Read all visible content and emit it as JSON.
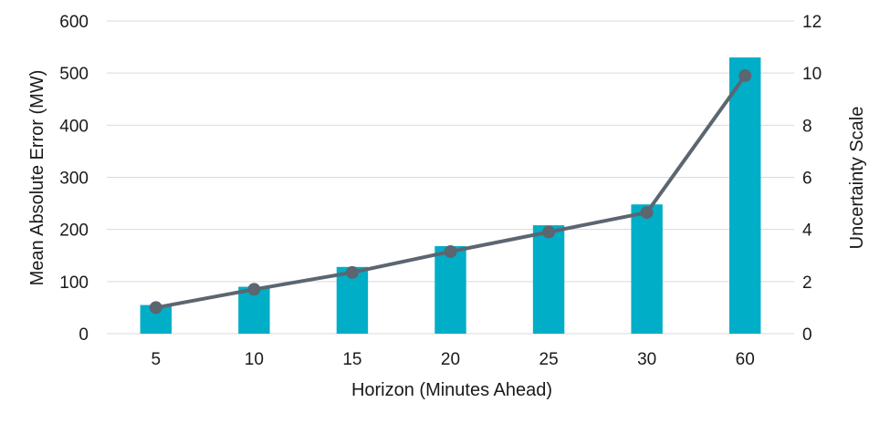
{
  "chart_data": {
    "type": "bar",
    "title": "",
    "categories": [
      "5",
      "10",
      "15",
      "20",
      "25",
      "30",
      "60"
    ],
    "xlabel": "Horizon (Minutes Ahead)",
    "ylabel": "Mean Absolute Error (MW)",
    "y2label": "Uncertainty Scale",
    "ylim": [
      0,
      600
    ],
    "y2lim": [
      0,
      12
    ],
    "yticks": [
      "0",
      "100",
      "200",
      "300",
      "400",
      "500",
      "600"
    ],
    "y2ticks": [
      "0",
      "2",
      "4",
      "6",
      "8",
      "10",
      "12"
    ],
    "grid": true,
    "legend": "none",
    "series": [
      {
        "type": "bar",
        "axis": "left",
        "color": "#00aec7",
        "values": [
          55,
          90,
          128,
          168,
          208,
          248,
          530
        ]
      },
      {
        "type": "line",
        "axis": "right",
        "color": "#5b6670",
        "values": [
          1.0,
          1.7,
          2.35,
          3.15,
          3.9,
          4.65,
          9.9
        ]
      }
    ]
  }
}
